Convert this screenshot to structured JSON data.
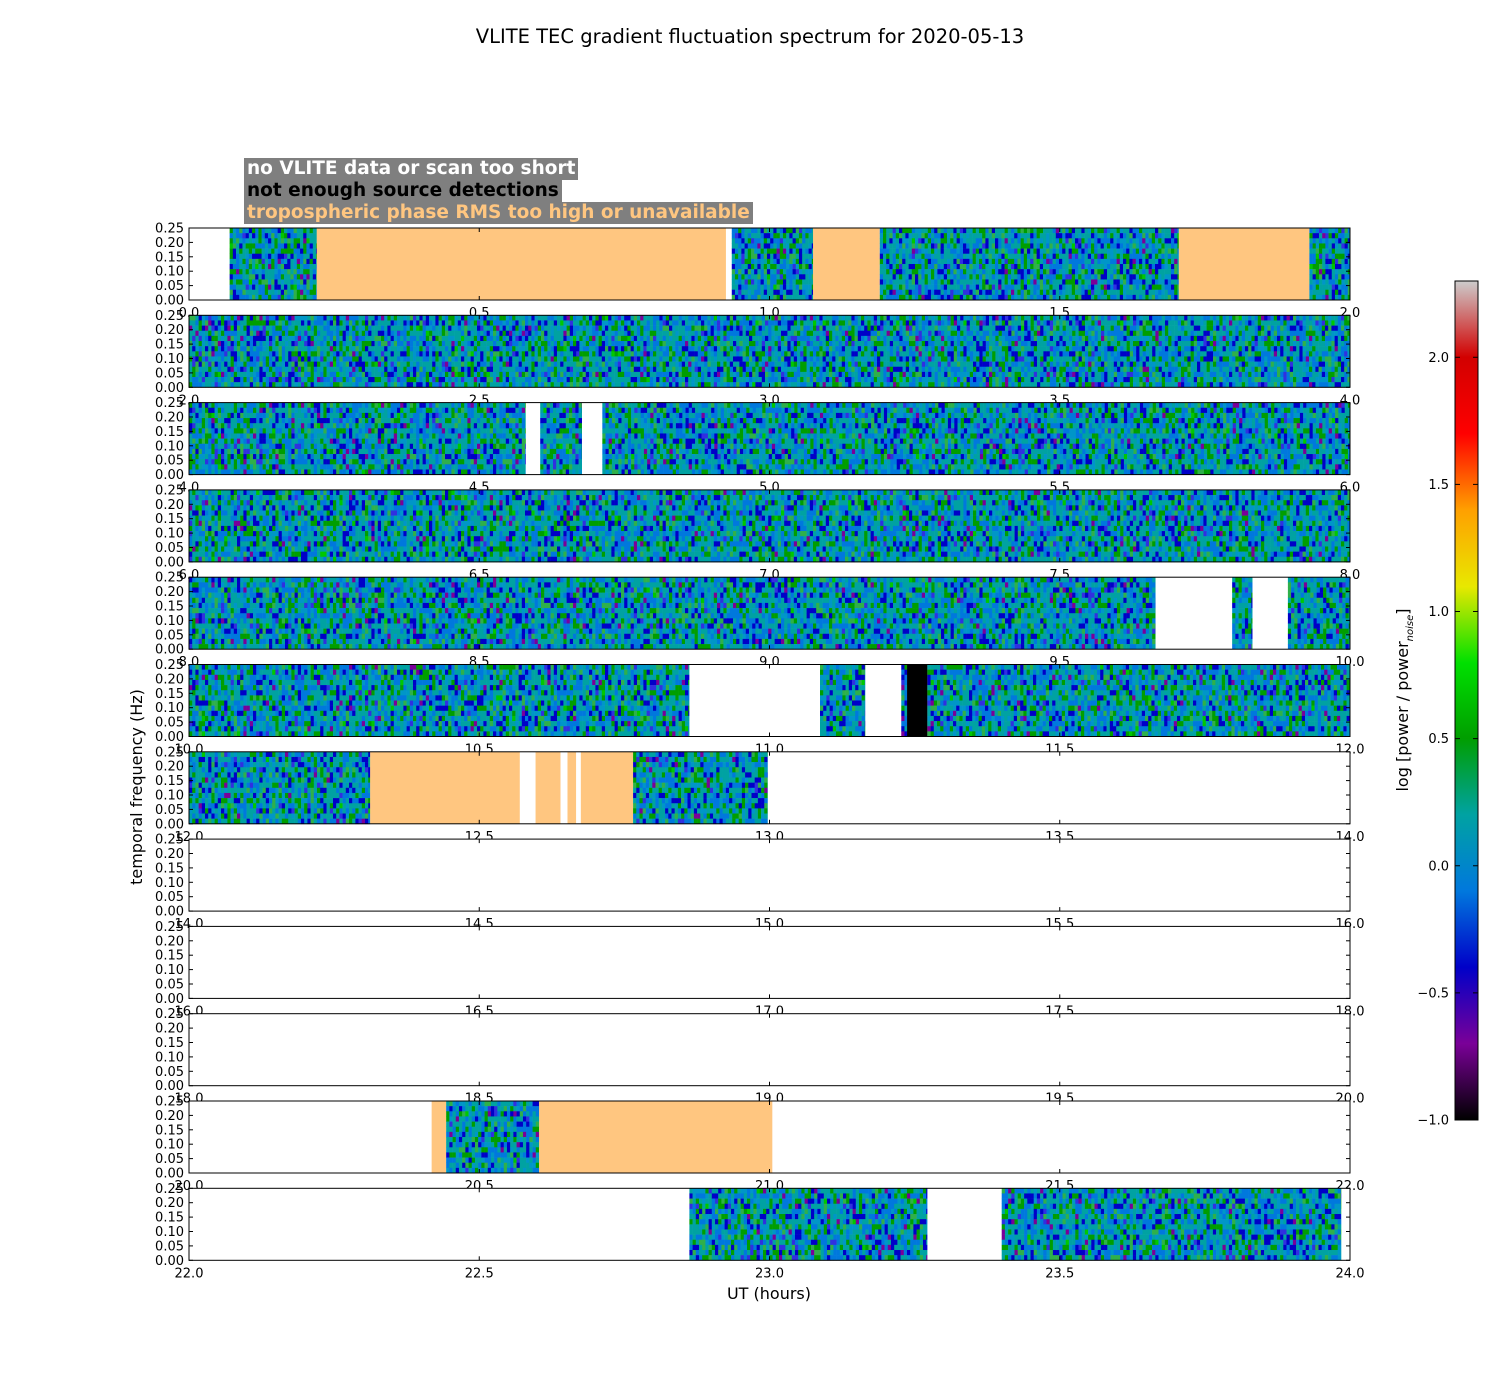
{
  "chart_data": {
    "type": "heatmap",
    "title": "VLITE TEC gradient fluctuation spectrum for 2020-05-13",
    "xlabel": "UT (hours)",
    "ylabel": "temporal frequency (Hz)",
    "colorbar_label": "log [power / power",
    "colorbar_label_sub": "noise",
    "colorbar_label_close": "]",
    "ylim": [
      0,
      0.25
    ],
    "y_ticks": [
      "0.00",
      "0.05",
      "0.10",
      "0.15",
      "0.20",
      "0.25"
    ],
    "colorbar_range": [
      -1.0,
      2.3
    ],
    "colorbar_ticks": [
      {
        "value": -1.0,
        "label": "−1.0"
      },
      {
        "value": -0.5,
        "label": "−0.5"
      },
      {
        "value": 0.0,
        "label": "0.0"
      },
      {
        "value": 0.5,
        "label": "0.5"
      },
      {
        "value": 1.0,
        "label": "1.0"
      },
      {
        "value": 1.5,
        "label": "1.5"
      },
      {
        "value": 2.0,
        "label": "2.0"
      }
    ],
    "colormap": [
      "#000000",
      "#7a0098",
      "#0000c8",
      "#0078dd",
      "#00a2a2",
      "#009e00",
      "#00e000",
      "#e8e800",
      "#ffa000",
      "#ff0000",
      "#d20000",
      "#cccccc"
    ],
    "flag_legend": [
      {
        "text": "no VLITE data or scan too short",
        "color": "#ffffff"
      },
      {
        "text": "not enough source detections",
        "color": "#000000"
      },
      {
        "text": "tropospheric phase RMS too high or unavailable",
        "color": "#ffc680"
      }
    ],
    "segment_types": {
      "data": "spectrum",
      "none": "no VLITE data or scan too short",
      "low": "not enough source detections",
      "trop": "tropospheric phase RMS too high or unavailable"
    },
    "panels": [
      {
        "xlim": [
          0,
          2
        ],
        "x_ticks": [
          "0.0",
          "0.5",
          "1.0",
          "1.5",
          "2.0"
        ],
        "segments": [
          {
            "start": 0.0,
            "end": 0.07,
            "kind": "none"
          },
          {
            "start": 0.07,
            "end": 0.22,
            "kind": "data"
          },
          {
            "start": 0.22,
            "end": 0.925,
            "kind": "trop"
          },
          {
            "start": 0.925,
            "end": 0.935,
            "kind": "none"
          },
          {
            "start": 0.935,
            "end": 1.075,
            "kind": "data"
          },
          {
            "start": 1.075,
            "end": 1.19,
            "kind": "trop"
          },
          {
            "start": 1.19,
            "end": 1.705,
            "kind": "data"
          },
          {
            "start": 1.705,
            "end": 1.93,
            "kind": "trop"
          },
          {
            "start": 1.93,
            "end": 2.0,
            "kind": "data"
          }
        ]
      },
      {
        "xlim": [
          2,
          4
        ],
        "x_ticks": [
          "2.0",
          "2.5",
          "3.0",
          "3.5",
          "4.0"
        ],
        "segments": [
          {
            "start": 2.0,
            "end": 4.0,
            "kind": "data"
          }
        ]
      },
      {
        "xlim": [
          4,
          6
        ],
        "x_ticks": [
          "4.0",
          "4.5",
          "5.0",
          "5.5",
          "6.0"
        ],
        "segments": [
          {
            "start": 4.0,
            "end": 4.58,
            "kind": "data"
          },
          {
            "start": 4.58,
            "end": 4.605,
            "kind": "none"
          },
          {
            "start": 4.605,
            "end": 4.677,
            "kind": "data"
          },
          {
            "start": 4.677,
            "end": 4.712,
            "kind": "none"
          },
          {
            "start": 4.712,
            "end": 6.0,
            "kind": "data"
          }
        ]
      },
      {
        "xlim": [
          6,
          8
        ],
        "x_ticks": [
          "6.0",
          "6.5",
          "7.0",
          "7.5",
          "8.0"
        ],
        "segments": [
          {
            "start": 6.0,
            "end": 8.0,
            "kind": "data"
          }
        ]
      },
      {
        "xlim": [
          8,
          10
        ],
        "x_ticks": [
          "8.0",
          "8.5",
          "9.0",
          "9.5",
          "10.0"
        ],
        "segments": [
          {
            "start": 8.0,
            "end": 9.665,
            "kind": "data"
          },
          {
            "start": 9.665,
            "end": 9.797,
            "kind": "none"
          },
          {
            "start": 9.797,
            "end": 9.832,
            "kind": "data"
          },
          {
            "start": 9.832,
            "end": 9.893,
            "kind": "none"
          },
          {
            "start": 9.893,
            "end": 10.0,
            "kind": "data"
          }
        ]
      },
      {
        "xlim": [
          10,
          12
        ],
        "x_ticks": [
          "10.0",
          "10.5",
          "11.0",
          "11.5",
          "12.0"
        ],
        "segments": [
          {
            "start": 10.0,
            "end": 10.862,
            "kind": "data"
          },
          {
            "start": 10.862,
            "end": 11.087,
            "kind": "none"
          },
          {
            "start": 11.087,
            "end": 11.165,
            "kind": "data"
          },
          {
            "start": 11.165,
            "end": 11.227,
            "kind": "none"
          },
          {
            "start": 11.227,
            "end": 11.237,
            "kind": "data"
          },
          {
            "start": 11.237,
            "end": 11.272,
            "kind": "low"
          },
          {
            "start": 11.272,
            "end": 12.0,
            "kind": "data"
          }
        ]
      },
      {
        "xlim": [
          12,
          14
        ],
        "x_ticks": [
          "12.0",
          "12.5",
          "13.0",
          "13.5",
          "14.0"
        ],
        "segments": [
          {
            "start": 12.0,
            "end": 12.312,
            "kind": "data"
          },
          {
            "start": 12.312,
            "end": 12.57,
            "kind": "trop"
          },
          {
            "start": 12.57,
            "end": 12.597,
            "kind": "none"
          },
          {
            "start": 12.597,
            "end": 12.64,
            "kind": "trop"
          },
          {
            "start": 12.64,
            "end": 12.652,
            "kind": "none"
          },
          {
            "start": 12.652,
            "end": 12.667,
            "kind": "trop"
          },
          {
            "start": 12.667,
            "end": 12.675,
            "kind": "none"
          },
          {
            "start": 12.675,
            "end": 12.765,
            "kind": "trop"
          },
          {
            "start": 12.765,
            "end": 12.997,
            "kind": "data"
          },
          {
            "start": 12.997,
            "end": 14.0,
            "kind": "none"
          }
        ]
      },
      {
        "xlim": [
          14,
          16
        ],
        "x_ticks": [
          "14.0",
          "14.5",
          "15.0",
          "15.5",
          "16.0"
        ],
        "segments": [
          {
            "start": 14.0,
            "end": 16.0,
            "kind": "none"
          }
        ]
      },
      {
        "xlim": [
          16,
          18
        ],
        "x_ticks": [
          "16.0",
          "16.5",
          "17.0",
          "17.5",
          "18.0"
        ],
        "segments": [
          {
            "start": 16.0,
            "end": 18.0,
            "kind": "none"
          }
        ]
      },
      {
        "xlim": [
          18,
          20
        ],
        "x_ticks": [
          "18.0",
          "18.5",
          "19.0",
          "19.5",
          "20.0"
        ],
        "segments": [
          {
            "start": 18.0,
            "end": 20.0,
            "kind": "none"
          }
        ]
      },
      {
        "xlim": [
          20,
          22
        ],
        "x_ticks": [
          "20.0",
          "20.5",
          "21.0",
          "21.5",
          "22.0"
        ],
        "segments": [
          {
            "start": 20.0,
            "end": 20.418,
            "kind": "none"
          },
          {
            "start": 20.418,
            "end": 20.443,
            "kind": "trop"
          },
          {
            "start": 20.443,
            "end": 20.603,
            "kind": "data"
          },
          {
            "start": 20.603,
            "end": 21.005,
            "kind": "trop"
          },
          {
            "start": 21.005,
            "end": 22.0,
            "kind": "none"
          }
        ]
      },
      {
        "xlim": [
          22,
          24
        ],
        "x_ticks": [
          "22.0",
          "22.5",
          "23.0",
          "23.5",
          "24.0"
        ],
        "segments": [
          {
            "start": 22.0,
            "end": 22.862,
            "kind": "none"
          },
          {
            "start": 22.862,
            "end": 23.272,
            "kind": "data"
          },
          {
            "start": 23.272,
            "end": 23.4,
            "kind": "none"
          },
          {
            "start": 23.4,
            "end": 23.985,
            "kind": "data"
          },
          {
            "start": 23.985,
            "end": 24.0,
            "kind": "none"
          }
        ]
      }
    ]
  }
}
